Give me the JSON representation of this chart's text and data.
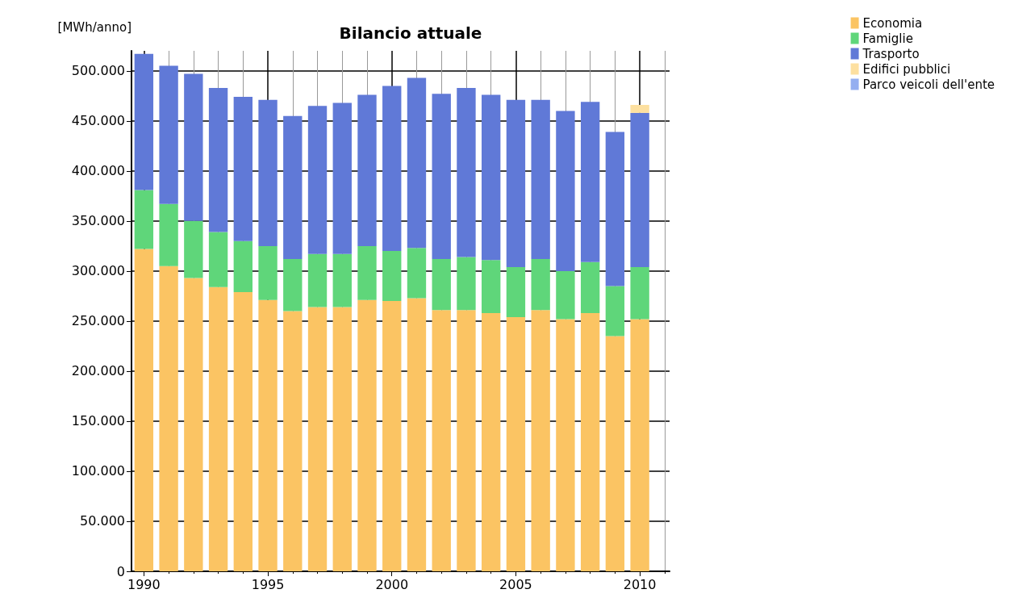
{
  "chart_data": {
    "type": "bar",
    "title": "Bilancio attuale",
    "ylabel": "[MWh/anno]",
    "x": [
      1990,
      1991,
      1992,
      1993,
      1994,
      1995,
      1996,
      1997,
      1998,
      1999,
      2000,
      2001,
      2002,
      2003,
      2004,
      2005,
      2006,
      2007,
      2008,
      2009,
      2010
    ],
    "stacked": true,
    "series": [
      {
        "name": "Economia",
        "color": "#fbc463",
        "values": [
          322000,
          305000,
          293000,
          284000,
          279000,
          271000,
          260000,
          264000,
          264000,
          271000,
          270000,
          273000,
          261000,
          261000,
          258000,
          254000,
          261000,
          252000,
          258000,
          235000,
          252000
        ]
      },
      {
        "name": "Famiglie",
        "color": "#5fd67a",
        "values": [
          59000,
          62000,
          57000,
          55000,
          51000,
          54000,
          52000,
          53000,
          53000,
          54000,
          50000,
          50000,
          51000,
          53000,
          53000,
          50000,
          51000,
          48000,
          51000,
          50000,
          52000
        ]
      },
      {
        "name": "Trasporto",
        "color": "#6079d7",
        "values": [
          136000,
          138000,
          147000,
          144000,
          144000,
          146000,
          143000,
          148000,
          151000,
          151000,
          165000,
          170000,
          165000,
          169000,
          165000,
          167000,
          159000,
          160000,
          160000,
          154000,
          154000
        ]
      },
      {
        "name": "Edifici pubblici",
        "color": "#fde0a0",
        "values": [
          0,
          0,
          0,
          0,
          0,
          0,
          0,
          0,
          0,
          0,
          0,
          0,
          0,
          0,
          0,
          0,
          0,
          0,
          0,
          0,
          8000
        ]
      },
      {
        "name": "Parco veicoli dell'ente",
        "color": "#94aef0",
        "values": [
          0,
          0,
          0,
          0,
          0,
          0,
          0,
          0,
          0,
          0,
          0,
          0,
          0,
          0,
          0,
          0,
          0,
          0,
          0,
          0,
          0
        ]
      }
    ],
    "xlim": [
      1989.5,
      2011.2
    ],
    "xticks": [
      1990,
      1995,
      2000,
      2005,
      2010
    ],
    "ylim": [
      0,
      520000
    ],
    "yticks": [
      0,
      {
        "value": 50000,
        "label": "50.000"
      },
      {
        "value": 100000,
        "label": "100.000"
      },
      {
        "value": 150000,
        "label": "150.000"
      },
      {
        "value": 200000,
        "label": "200.000"
      },
      {
        "value": 250000,
        "label": "250.000"
      },
      {
        "value": 300000,
        "label": "300.000"
      },
      {
        "value": 350000,
        "label": "350.000"
      },
      {
        "value": 400000,
        "label": "400.000"
      },
      {
        "value": 450000,
        "label": "450.000"
      },
      {
        "value": 500000,
        "label": "500.000"
      }
    ],
    "grid": true,
    "legend": "top right"
  }
}
